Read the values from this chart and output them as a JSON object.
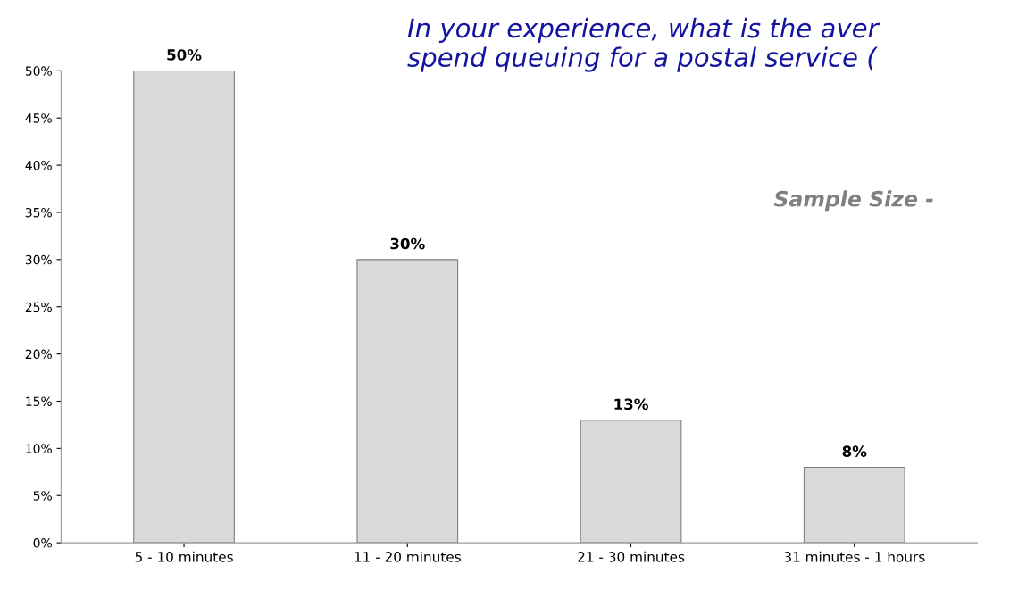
{
  "chart_data": {
    "type": "bar",
    "title": "In your experience, what is the aver\nspend queuing for a postal service (",
    "subtitle": "Sample Size -",
    "categories": [
      "5 - 10 minutes",
      "11 - 20 minutes",
      "21 - 30 minutes",
      "31 minutes - 1 hours"
    ],
    "values": [
      50,
      30,
      13,
      8
    ],
    "value_labels": [
      "50%",
      "30%",
      "13%",
      "8%"
    ],
    "color": "#d9d9d9",
    "ylim": [
      0,
      50
    ],
    "yticks": [
      {
        "value": 0,
        "label": "0%"
      },
      {
        "value": 5,
        "label": "5%"
      },
      {
        "value": 10,
        "label": "10%"
      },
      {
        "value": 15,
        "label": "15%"
      },
      {
        "value": 20,
        "label": "20%"
      },
      {
        "value": 25,
        "label": "25%"
      },
      {
        "value": 30,
        "label": "30%"
      },
      {
        "value": 35,
        "label": "35%"
      },
      {
        "value": 40,
        "label": "40%"
      },
      {
        "value": 45,
        "label": "45%"
      },
      {
        "value": 50,
        "label": "50%"
      }
    ],
    "grid": false,
    "legend": false
  }
}
